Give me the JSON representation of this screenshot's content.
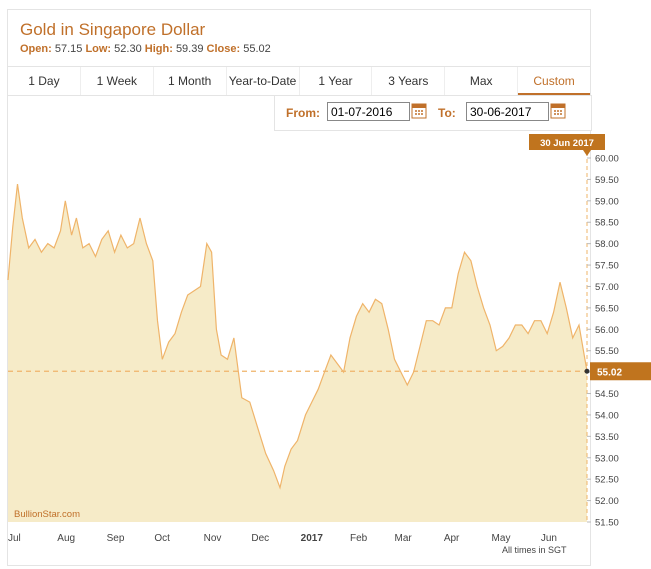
{
  "header": {
    "title": "Gold in Singapore Dollar",
    "open_label": "Open:",
    "open_value": "57.15",
    "low_label": "Low:",
    "low_value": "52.30",
    "high_label": "High:",
    "high_value": "59.39",
    "close_label": "Close:",
    "close_value": "55.02"
  },
  "tabs": [
    {
      "label": "1 Day"
    },
    {
      "label": "1 Week"
    },
    {
      "label": "1 Month"
    },
    {
      "label": "Year-to-Date"
    },
    {
      "label": "1 Year"
    },
    {
      "label": "3 Years"
    },
    {
      "label": "Max"
    },
    {
      "label": "Custom"
    }
  ],
  "active_tab": "Custom",
  "range": {
    "from_label": "From:",
    "from_value": "01-07-2016",
    "to_label": "To:",
    "to_value": "30-06-2017"
  },
  "colors": {
    "accent": "#c0702a",
    "fill": "#f6ebc8",
    "line": "#efb46a",
    "badge": "#c0741e"
  },
  "chart_data": {
    "type": "area",
    "x_tick_labels": [
      "Jul",
      "Aug",
      "Sep",
      "Oct",
      "Nov",
      "Dec",
      "2017",
      "Feb",
      "Mar",
      "Apr",
      "May",
      "Jun"
    ],
    "y_ticks": [
      "60.00",
      "59.50",
      "59.00",
      "58.50",
      "58.00",
      "57.50",
      "57.00",
      "56.50",
      "56.00",
      "55.50",
      "55.00",
      "54.50",
      "54.00",
      "53.50",
      "53.00",
      "52.50",
      "52.00",
      "51.50"
    ],
    "ylim": [
      51.5,
      60.0
    ],
    "dates": [
      "2016-07-01",
      "2016-07-04",
      "2016-07-07",
      "2016-07-10",
      "2016-07-14",
      "2016-07-18",
      "2016-07-22",
      "2016-07-26",
      "2016-07-30",
      "2016-08-03",
      "2016-08-06",
      "2016-08-10",
      "2016-08-13",
      "2016-08-17",
      "2016-08-21",
      "2016-08-25",
      "2016-08-29",
      "2016-09-02",
      "2016-09-06",
      "2016-09-10",
      "2016-09-14",
      "2016-09-18",
      "2016-09-22",
      "2016-09-26",
      "2016-09-30",
      "2016-10-03",
      "2016-10-06",
      "2016-10-10",
      "2016-10-14",
      "2016-10-18",
      "2016-10-22",
      "2016-10-26",
      "2016-10-30",
      "2016-11-03",
      "2016-11-06",
      "2016-11-09",
      "2016-11-12",
      "2016-11-16",
      "2016-11-20",
      "2016-11-25",
      "2016-11-30",
      "2016-12-05",
      "2016-12-10",
      "2016-12-15",
      "2016-12-19",
      "2016-12-22",
      "2016-12-26",
      "2016-12-30",
      "2017-01-04",
      "2017-01-08",
      "2017-01-12",
      "2017-01-16",
      "2017-01-20",
      "2017-01-24",
      "2017-01-28",
      "2017-02-01",
      "2017-02-05",
      "2017-02-09",
      "2017-02-13",
      "2017-02-17",
      "2017-02-21",
      "2017-02-25",
      "2017-03-01",
      "2017-03-05",
      "2017-03-09",
      "2017-03-13",
      "2017-03-17",
      "2017-03-21",
      "2017-03-25",
      "2017-03-29",
      "2017-04-02",
      "2017-04-06",
      "2017-04-10",
      "2017-04-14",
      "2017-04-18",
      "2017-04-22",
      "2017-04-26",
      "2017-04-30",
      "2017-05-04",
      "2017-05-08",
      "2017-05-12",
      "2017-05-16",
      "2017-05-20",
      "2017-05-24",
      "2017-05-28",
      "2017-06-01",
      "2017-06-05",
      "2017-06-09",
      "2017-06-13",
      "2017-06-17",
      "2017-06-21",
      "2017-06-25",
      "2017-06-30"
    ],
    "values": [
      57.15,
      58.4,
      59.39,
      58.6,
      57.9,
      58.1,
      57.8,
      58.0,
      57.9,
      58.3,
      59.0,
      58.2,
      58.6,
      57.9,
      58.0,
      57.7,
      58.1,
      58.3,
      57.8,
      58.2,
      57.9,
      58.0,
      58.6,
      58.0,
      57.6,
      56.2,
      55.3,
      55.7,
      55.9,
      56.4,
      56.8,
      56.9,
      57.0,
      58.0,
      57.8,
      56.0,
      55.4,
      55.3,
      55.8,
      54.4,
      54.3,
      53.7,
      53.1,
      52.7,
      52.3,
      52.8,
      53.2,
      53.4,
      54.0,
      54.3,
      54.6,
      55.0,
      55.4,
      55.2,
      55.0,
      55.8,
      56.3,
      56.6,
      56.4,
      56.7,
      56.6,
      56.0,
      55.3,
      55.0,
      54.7,
      55.0,
      55.6,
      56.2,
      56.2,
      56.1,
      56.5,
      56.5,
      57.3,
      57.8,
      57.6,
      57.0,
      56.5,
      56.1,
      55.5,
      55.6,
      55.8,
      56.1,
      56.1,
      55.9,
      56.2,
      56.2,
      55.9,
      56.4,
      57.1,
      56.5,
      55.8,
      56.1,
      55.02
    ],
    "last_value": "55.02",
    "last_date_label": "30 Jun 2017",
    "source_label": "BullionStar.com",
    "timezone_note": "All times in SGT"
  }
}
